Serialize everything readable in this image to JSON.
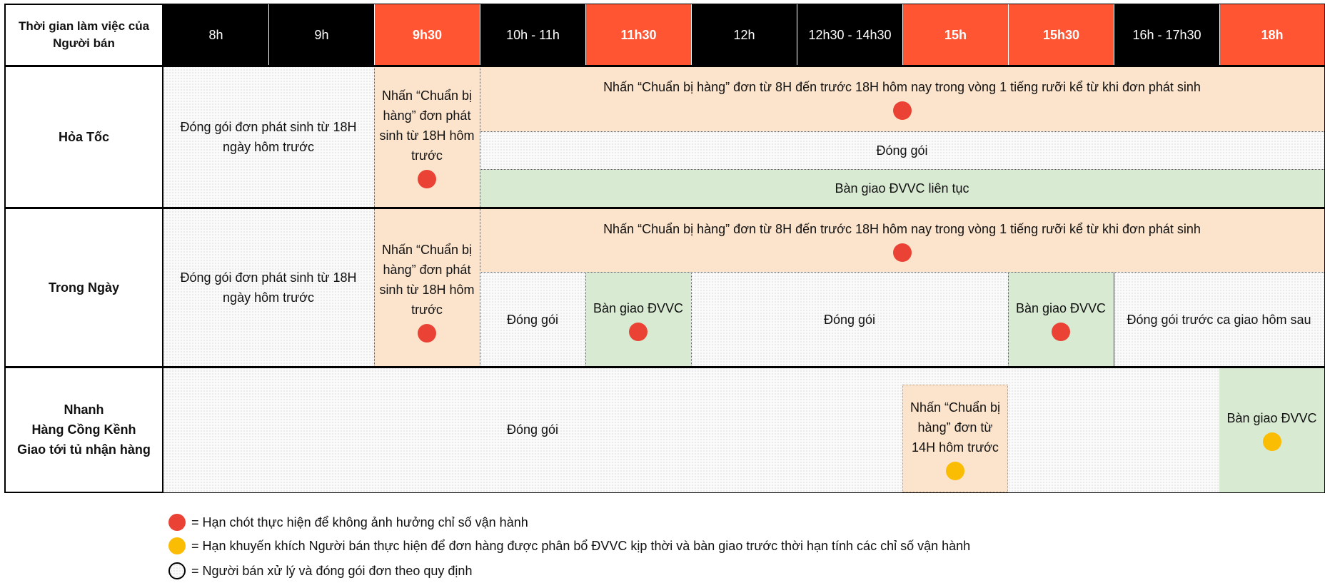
{
  "colors": {
    "header_black": "#000000",
    "header_orange": "#ff5533",
    "prepare": "#fce4cc",
    "handover": "#d9ead3",
    "deadline_dot": "#ea4335",
    "recommended_dot": "#fbbc04"
  },
  "header": {
    "corner": "Thời gian làm việc của Người bán",
    "times": [
      "8h",
      "9h",
      "9h30",
      "10h - 11h",
      "11h30",
      "12h",
      "12h30 - 14h30",
      "15h",
      "15h30",
      "16h - 17h30",
      "18h"
    ]
  },
  "rows": {
    "hoa_toc": {
      "label": "Hỏa Tốc",
      "pack_prev": "Đóng gói đơn phát sinh từ 18H ngày hôm trước",
      "prep_prev": "Nhấn “Chuẩn bị hàng” đơn phát sinh từ 18H hôm trước",
      "prep_today": "Nhấn “Chuẩn bị hàng” đơn từ 8H đến trước 18H hôm nay trong vòng 1 tiếng rưỡi kể từ khi đơn phát sinh",
      "pack": "Đóng gói",
      "handover": "Bàn giao ĐVVC liên tục"
    },
    "trong_ngay": {
      "label": "Trong Ngày",
      "pack_prev": "Đóng gói đơn phát sinh từ 18H ngày hôm trước",
      "prep_prev": "Nhấn “Chuẩn bị hàng” đơn phát sinh từ 18H hôm trước",
      "prep_today": "Nhấn “Chuẩn bị hàng” đơn từ 8H đến trước 18H hôm nay trong vòng 1 tiếng rưỡi kể từ khi đơn phát sinh",
      "pack_1": "Đóng gói",
      "handover_1": "Bàn giao ĐVVC",
      "pack_2": "Đóng gói",
      "handover_2": "Bàn giao ĐVVC",
      "pack_next": "Đóng gói trước ca giao hôm sau"
    },
    "nhanh": {
      "label_lines": [
        "Nhanh",
        "Hàng Cồng Kềnh",
        "Giao tới tủ nhận hàng"
      ],
      "pack": "Đóng gói",
      "prep": "Nhấn “Chuẩn bị hàng” đơn từ 14H hôm trước",
      "handover": "Bàn giao ĐVVC"
    }
  },
  "legend": [
    {
      "icon": "red-dot",
      "text": "= Hạn chót thực hiện để không ảnh hưởng chỉ số vận hành"
    },
    {
      "icon": "yellow-dot",
      "text": "= Hạn khuyến khích Người bán thực hiện để đơn hàng được phân bổ ĐVVC kịp thời và bàn giao trước thời hạn tính các chỉ số vận hành"
    },
    {
      "icon": "dotted-circle",
      "text": "= Người bán xử lý và đóng gói đơn theo quy định"
    }
  ]
}
